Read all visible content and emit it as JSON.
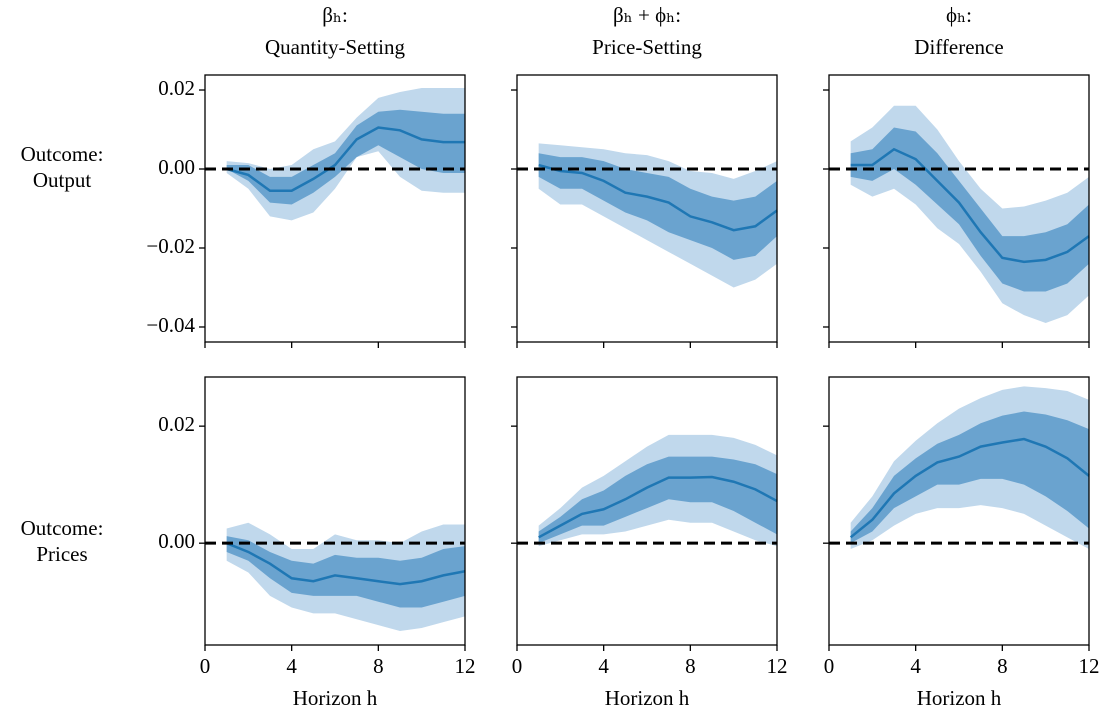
{
  "chart_data": [
    {
      "type": "band-line",
      "title_lines": [
        "βₕ:",
        "Quantity-Setting"
      ],
      "row_label": [
        "Outcome:",
        "Output"
      ],
      "x": [
        1,
        2,
        3,
        4,
        5,
        6,
        7,
        8,
        9,
        10,
        11,
        12
      ],
      "values": [
        0,
        -0.0015,
        -0.0055,
        -0.0055,
        -0.0025,
        0.001,
        0.0075,
        0.0105,
        0.0098,
        0.0075,
        0.0068,
        0.0068
      ],
      "band_inner": {
        "lower": [
          0,
          -0.003,
          -0.0085,
          -0.009,
          -0.006,
          -0.002,
          0.003,
          0.006,
          0.003,
          0,
          -0.001,
          -0.001
        ],
        "upper": [
          0.001,
          0.001,
          -0.002,
          -0.002,
          0.001,
          0.004,
          0.011,
          0.0145,
          0.015,
          0.0145,
          0.014,
          0.014
        ]
      },
      "band_outer": {
        "lower": [
          -0.001,
          -0.005,
          -0.012,
          -0.013,
          -0.011,
          -0.005,
          0.003,
          0.0045,
          -0.002,
          -0.0055,
          -0.006,
          -0.006
        ],
        "upper": [
          0.002,
          0.0015,
          0,
          0.001,
          0.005,
          0.007,
          0.013,
          0.018,
          0.0195,
          0.0205,
          0.0205,
          0.0205
        ]
      },
      "xlim": [
        0,
        12
      ],
      "xticks": [
        0,
        4,
        8,
        12
      ],
      "show_xtick_labels": false,
      "ylim": [
        -0.0438,
        0.0238
      ],
      "yticks": [
        {
          "value": 0.02,
          "label": "0.02"
        },
        {
          "value": 0,
          "label": "0.00"
        },
        {
          "value": -0.02,
          "label": "−0.02"
        },
        {
          "value": -0.04,
          "label": "−0.04"
        }
      ],
      "show_ytick_labels": true,
      "hline": 0
    },
    {
      "type": "band-line",
      "title_lines": [
        "βₕ + ϕₕ:",
        "Price-Setting"
      ],
      "x": [
        1,
        2,
        3,
        4,
        5,
        6,
        7,
        8,
        9,
        10,
        11,
        12
      ],
      "values": [
        0.001,
        -0.0005,
        -0.001,
        -0.003,
        -0.006,
        -0.007,
        -0.0085,
        -0.012,
        -0.0135,
        -0.0155,
        -0.0145,
        -0.0105
      ],
      "band_inner": {
        "lower": [
          -0.002,
          -0.005,
          -0.005,
          -0.008,
          -0.011,
          -0.013,
          -0.016,
          -0.018,
          -0.02,
          -0.023,
          -0.022,
          -0.017
        ],
        "upper": [
          0.004,
          0.003,
          0.003,
          0.002,
          0,
          -0.001,
          -0.002,
          -0.005,
          -0.007,
          -0.008,
          -0.007,
          -0.003
        ]
      },
      "band_outer": {
        "lower": [
          -0.005,
          -0.009,
          -0.009,
          -0.012,
          -0.015,
          -0.018,
          -0.021,
          -0.024,
          -0.027,
          -0.03,
          -0.028,
          -0.024
        ],
        "upper": [
          0.0065,
          0.006,
          0.0055,
          0.005,
          0.004,
          0.0035,
          0.002,
          -0.0005,
          -0.001,
          -0.0025,
          -0.0005,
          0.002
        ]
      },
      "xlim": [
        0,
        12
      ],
      "xticks": [
        0,
        4,
        8,
        12
      ],
      "show_xtick_labels": false,
      "ylim": [
        -0.0438,
        0.0238
      ],
      "yticks": [
        0.02,
        0,
        -0.02,
        -0.04
      ],
      "show_ytick_labels": false,
      "hline": 0
    },
    {
      "type": "band-line",
      "title_lines": [
        "ϕₕ:",
        "Difference"
      ],
      "x": [
        1,
        2,
        3,
        4,
        5,
        6,
        7,
        8,
        9,
        10,
        11,
        12
      ],
      "values": [
        0.001,
        0.001,
        0.005,
        0.0025,
        -0.003,
        -0.0085,
        -0.016,
        -0.0225,
        -0.0235,
        -0.023,
        -0.021,
        -0.017
      ],
      "band_inner": {
        "lower": [
          -0.002,
          -0.003,
          0,
          -0.004,
          -0.009,
          -0.014,
          -0.022,
          -0.029,
          -0.031,
          -0.031,
          -0.029,
          -0.024
        ],
        "upper": [
          0.004,
          0.005,
          0.0105,
          0.0095,
          0.004,
          -0.003,
          -0.01,
          -0.017,
          -0.017,
          -0.016,
          -0.014,
          -0.009
        ]
      },
      "band_outer": {
        "lower": [
          -0.004,
          -0.007,
          -0.005,
          -0.009,
          -0.015,
          -0.019,
          -0.026,
          -0.034,
          -0.037,
          -0.039,
          -0.037,
          -0.032
        ],
        "upper": [
          0.007,
          0.0105,
          0.016,
          0.016,
          0.01,
          0.002,
          -0.005,
          -0.01,
          -0.0095,
          -0.008,
          -0.006,
          -0.002
        ]
      },
      "xlim": [
        0,
        12
      ],
      "xticks": [
        0,
        4,
        8,
        12
      ],
      "show_xtick_labels": false,
      "ylim": [
        -0.0438,
        0.0238
      ],
      "yticks": [
        0.02,
        0,
        -0.02,
        -0.04
      ],
      "show_ytick_labels": false,
      "hline": 0
    },
    {
      "type": "band-line",
      "row_label": [
        "Outcome:",
        "Prices"
      ],
      "xlabel": "Horizon h",
      "x": [
        1,
        2,
        3,
        4,
        5,
        6,
        7,
        8,
        9,
        10,
        11,
        12
      ],
      "values": [
        0,
        -0.0015,
        -0.0035,
        -0.006,
        -0.0065,
        -0.0055,
        -0.006,
        -0.0065,
        -0.007,
        -0.0065,
        -0.0055,
        -0.0048
      ],
      "band_inner": {
        "lower": [
          -0.0015,
          -0.003,
          -0.006,
          -0.0085,
          -0.009,
          -0.009,
          -0.009,
          -0.01,
          -0.011,
          -0.011,
          -0.01,
          -0.009
        ],
        "upper": [
          0.0012,
          0.0005,
          -0.0015,
          -0.003,
          -0.0035,
          -0.002,
          -0.0025,
          -0.0025,
          -0.003,
          -0.0025,
          -0.001,
          -0.0005
        ]
      },
      "band_outer": {
        "lower": [
          -0.003,
          -0.005,
          -0.009,
          -0.011,
          -0.012,
          -0.012,
          -0.013,
          -0.014,
          -0.015,
          -0.0145,
          -0.0135,
          -0.0125
        ],
        "upper": [
          0.0025,
          0.0035,
          0.0015,
          -0.001,
          -0.001,
          0.0015,
          0.0005,
          0.0005,
          0,
          0.002,
          0.0032,
          0.0032
        ]
      },
      "xlim": [
        0,
        12
      ],
      "xticks": [
        0,
        4,
        8,
        12
      ],
      "show_xtick_labels": true,
      "ylim": [
        -0.0174,
        0.0284
      ],
      "yticks": [
        {
          "value": 0.02,
          "label": "0.02"
        },
        {
          "value": 0,
          "label": "0.00"
        }
      ],
      "show_ytick_labels": true,
      "hline": 0
    },
    {
      "type": "band-line",
      "xlabel": "Horizon h",
      "x": [
        1,
        2,
        3,
        4,
        5,
        6,
        7,
        8,
        9,
        10,
        11,
        12
      ],
      "values": [
        0.001,
        0.003,
        0.005,
        0.0058,
        0.0075,
        0.0095,
        0.0112,
        0.0112,
        0.0113,
        0.0105,
        0.0092,
        0.0072
      ],
      "band_inner": {
        "lower": [
          0,
          0.0015,
          0.003,
          0.003,
          0.0045,
          0.006,
          0.0075,
          0.007,
          0.007,
          0.0055,
          0.0035,
          0.0015
        ],
        "upper": [
          0.002,
          0.0045,
          0.0075,
          0.009,
          0.0115,
          0.0135,
          0.0148,
          0.0148,
          0.0148,
          0.0143,
          0.0135,
          0.0118
        ]
      },
      "band_outer": {
        "lower": [
          -0.0005,
          0.0005,
          0.0015,
          0.0015,
          0.002,
          0.003,
          0.004,
          0.0035,
          0.0035,
          0.002,
          0.0005,
          -0.0005
        ],
        "upper": [
          0.003,
          0.006,
          0.0095,
          0.0115,
          0.014,
          0.0165,
          0.0185,
          0.0185,
          0.0185,
          0.018,
          0.0168,
          0.015
        ]
      },
      "xlim": [
        0,
        12
      ],
      "xticks": [
        0,
        4,
        8,
        12
      ],
      "show_xtick_labels": true,
      "ylim": [
        -0.0174,
        0.0284
      ],
      "yticks": [
        0.02,
        0
      ],
      "show_ytick_labels": false,
      "hline": 0
    },
    {
      "type": "band-line",
      "xlabel": "Horizon h",
      "x": [
        1,
        2,
        3,
        4,
        5,
        6,
        7,
        8,
        9,
        10,
        11,
        12
      ],
      "values": [
        0.001,
        0.004,
        0.0085,
        0.0115,
        0.0138,
        0.0148,
        0.0165,
        0.0172,
        0.0178,
        0.0165,
        0.0145,
        0.0115
      ],
      "band_inner": {
        "lower": [
          0,
          0.002,
          0.006,
          0.008,
          0.01,
          0.01,
          0.011,
          0.011,
          0.01,
          0.008,
          0.0055,
          0.0025
        ],
        "upper": [
          0.002,
          0.006,
          0.0115,
          0.0145,
          0.017,
          0.0185,
          0.0205,
          0.0218,
          0.0225,
          0.022,
          0.021,
          0.0195
        ]
      },
      "band_outer": {
        "lower": [
          -0.001,
          0.0005,
          0.003,
          0.005,
          0.006,
          0.006,
          0.0065,
          0.006,
          0.005,
          0.003,
          0.001,
          -0.001
        ],
        "upper": [
          0.0035,
          0.008,
          0.014,
          0.0175,
          0.0205,
          0.023,
          0.0248,
          0.0262,
          0.0268,
          0.0265,
          0.026,
          0.0245
        ]
      },
      "xlim": [
        0,
        12
      ],
      "xticks": [
        0,
        4,
        8,
        12
      ],
      "show_xtick_labels": true,
      "ylim": [
        -0.0174,
        0.0284
      ],
      "yticks": [
        0.02,
        0
      ],
      "show_ytick_labels": false,
      "hline": 0
    }
  ],
  "colors": {
    "line": "#1f77b4",
    "band_inner": "#6aa3cf",
    "band_outer": "#c0d8ec",
    "hline": "#000000"
  }
}
